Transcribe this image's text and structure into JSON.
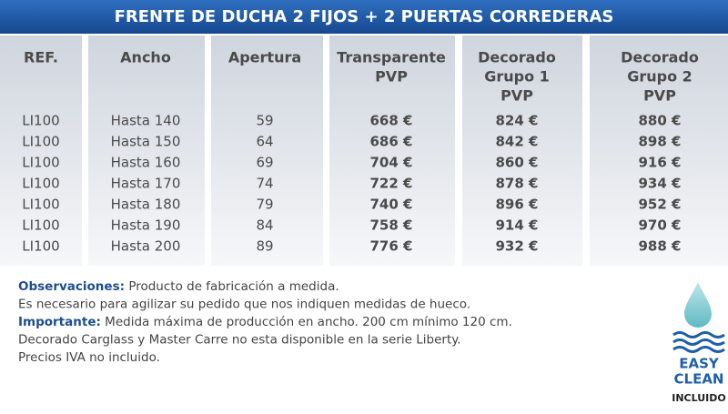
{
  "header": {
    "title": "FRENTE DE DUCHA 2 FIJOS + 2 PUERTAS CORREDERAS"
  },
  "table": {
    "columns": [
      [
        "REF."
      ],
      [
        "Ancho"
      ],
      [
        "Apertura"
      ],
      [
        "Transparente",
        "PVP"
      ],
      [
        "Decorado",
        "Grupo 1",
        "PVP"
      ],
      [
        "Decorado",
        "Grupo 2",
        "PVP"
      ]
    ],
    "rows": [
      [
        "LI100",
        "Hasta 140",
        "59",
        "668 €",
        "824 €",
        "880 €"
      ],
      [
        "LI100",
        "Hasta 150",
        "64",
        "686 €",
        "842 €",
        "898 €"
      ],
      [
        "LI100",
        "Hasta 160",
        "69",
        "704 €",
        "860 €",
        "916 €"
      ],
      [
        "LI100",
        "Hasta 170",
        "74",
        "722 €",
        "878 €",
        "934 €"
      ],
      [
        "LI100",
        "Hasta 180",
        "79",
        "740 €",
        "896 €",
        "952 €"
      ],
      [
        "LI100",
        "Hasta 190",
        "84",
        "758 €",
        "914 €",
        "970 €"
      ],
      [
        "LI100",
        "Hasta 200",
        "89",
        "776 €",
        "932 €",
        "988 €"
      ]
    ]
  },
  "notes": [
    {
      "label": "Observaciones:",
      "text": "Producto de fabricación a medida."
    },
    {
      "text": "Es necesario para agilizar su pedido que nos indiquen medidas de hueco."
    },
    {
      "label": "Importante:",
      "text": "Medida máxima de producción en ancho. 200 cm mínimo 120 cm."
    },
    {
      "text": "Decorado Carglass y Master Carre no esta disponible en la serie Liberty."
    },
    {
      "text": "Precios IVA no incluido."
    }
  ],
  "badge": {
    "line1": "EASY",
    "line2": "CLEAN",
    "caption": "INCLUIDO"
  }
}
